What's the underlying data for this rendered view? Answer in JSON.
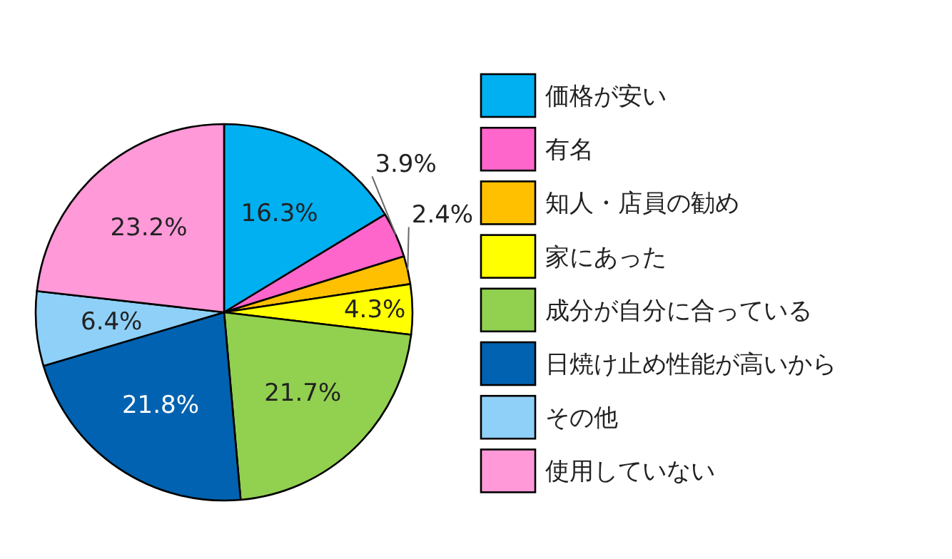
{
  "chart_data": {
    "type": "pie",
    "legend": "right",
    "categories": [
      "価格が安い",
      "有名",
      "知人・店員の勧め",
      "家にあった",
      "成分が自分に合っている",
      "日焼け止め性能が高いから",
      "その他",
      "使用していない"
    ],
    "values": [
      16.3,
      3.9,
      2.4,
      4.3,
      21.7,
      21.8,
      6.4,
      23.2
    ],
    "value_labels": [
      "16.3%",
      "3.9%",
      "2.4%",
      "4.3%",
      "21.7%",
      "21.8%",
      "6.4%",
      "23.2%"
    ],
    "colors": [
      "#00b0f0",
      "#ff66cc",
      "#ffc000",
      "#ffff00",
      "#92d050",
      "#0062b0",
      "#8fd0f8",
      "#ff99d8"
    ]
  }
}
